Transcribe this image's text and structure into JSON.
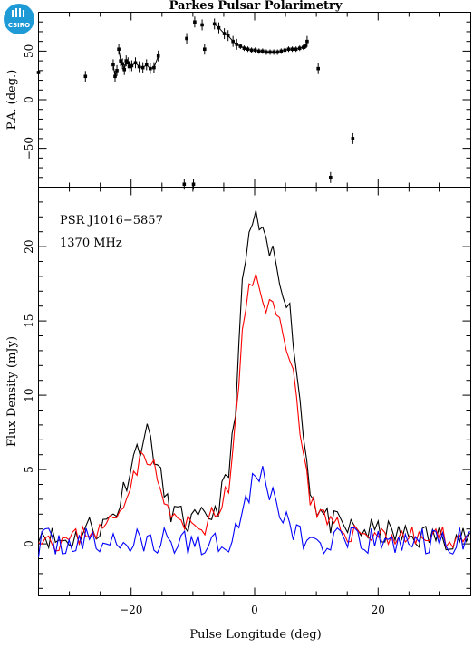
{
  "title": "Parkes Pulsar Polarimetry",
  "logo_text": "CSIRO",
  "colors": {
    "total": "#000000",
    "linear": "#ff0000",
    "circular": "#0000ff",
    "logo": "#1e9bd7"
  },
  "chart_data": [
    {
      "type": "scatter",
      "panel": "position-angle",
      "ylabel": "P.A. (deg.)",
      "xlim": [
        -35,
        35
      ],
      "ylim": [
        -90,
        90
      ],
      "yticks": [
        -50,
        0,
        50
      ],
      "ytick_labels": [
        "−50",
        "0",
        "50"
      ],
      "error_bars": true,
      "points": [
        [
          -35,
          28
        ],
        [
          -27.4,
          24
        ],
        [
          -22.9,
          36
        ],
        [
          -22.6,
          24
        ],
        [
          -22.3,
          30
        ],
        [
          -22.0,
          52
        ],
        [
          -21.7,
          40
        ],
        [
          -21.4,
          37
        ],
        [
          -21.1,
          31
        ],
        [
          -20.8,
          40
        ],
        [
          -20.5,
          38
        ],
        [
          -20.2,
          34
        ],
        [
          -19.9,
          35
        ],
        [
          -19.3,
          38
        ],
        [
          -18.7,
          34
        ],
        [
          -18.1,
          33
        ],
        [
          -17.5,
          36
        ],
        [
          -16.9,
          32
        ],
        [
          -16.3,
          33
        ],
        [
          -15.6,
          45
        ],
        [
          -11.4,
          -87
        ],
        [
          -11.0,
          63
        ],
        [
          -9.9,
          -87
        ],
        [
          -9.7,
          80
        ],
        [
          -8.5,
          77
        ],
        [
          -8.1,
          52
        ],
        [
          -6.5,
          78
        ],
        [
          -5.8,
          74
        ],
        [
          -4.9,
          68
        ],
        [
          -4.3,
          66
        ],
        [
          -3.5,
          60
        ],
        [
          -2.9,
          57
        ],
        [
          -2.3,
          55
        ],
        [
          -1.7,
          53
        ],
        [
          -1.1,
          52
        ],
        [
          -0.5,
          51
        ],
        [
          0.1,
          51
        ],
        [
          0.7,
          50
        ],
        [
          1.3,
          50
        ],
        [
          1.9,
          49
        ],
        [
          2.5,
          49
        ],
        [
          3.1,
          49
        ],
        [
          3.7,
          49
        ],
        [
          4.3,
          50
        ],
        [
          4.9,
          51
        ],
        [
          5.5,
          52
        ],
        [
          6.1,
          52
        ],
        [
          6.7,
          52
        ],
        [
          7.3,
          53
        ],
        [
          7.9,
          54
        ],
        [
          8.2,
          55
        ],
        [
          8.5,
          60
        ],
        [
          10.3,
          32
        ],
        [
          12.3,
          -80
        ],
        [
          15.9,
          -40
        ]
      ]
    },
    {
      "type": "line",
      "panel": "flux",
      "xlabel": "Pulse Longitude (deg)",
      "ylabel": "Flux Density (mJy)",
      "xlim": [
        -35,
        35
      ],
      "ylim": [
        -3.5,
        24
      ],
      "xticks": [
        -20,
        0,
        20
      ],
      "xtick_labels": [
        "−20",
        "0",
        "20"
      ],
      "yticks": [
        0,
        5,
        10,
        15,
        20
      ],
      "ytick_labels": [
        "0",
        "5",
        "10",
        "15",
        "20"
      ],
      "annotations": [
        "PSR J1016−5857",
        "1370 MHz"
      ],
      "profile_points": [
        [
          -35,
          1
        ],
        [
          -32,
          0.2
        ],
        [
          -29,
          0.4
        ],
        [
          -27,
          1.2
        ],
        [
          -25,
          1.0
        ],
        [
          -22,
          2.5
        ],
        [
          -20,
          5.5
        ],
        [
          -18,
          7.2
        ],
        [
          -17,
          7.5
        ],
        [
          -16,
          5.5
        ],
        [
          -14,
          2.5
        ],
        [
          -11,
          1.4
        ],
        [
          -8,
          1.6
        ],
        [
          -6,
          2.5
        ],
        [
          -4,
          5
        ],
        [
          -3,
          10
        ],
        [
          -2,
          17
        ],
        [
          -1,
          20.5
        ],
        [
          0,
          22
        ],
        [
          1,
          21
        ],
        [
          2,
          19.5
        ],
        [
          3,
          19.5
        ],
        [
          4,
          18
        ],
        [
          5,
          17
        ],
        [
          6,
          15
        ],
        [
          7,
          11
        ],
        [
          8,
          7
        ],
        [
          9,
          4
        ],
        [
          10,
          2.5
        ],
        [
          12,
          1.5
        ],
        [
          15,
          1
        ],
        [
          20,
          0.8
        ],
        [
          25,
          0.5
        ],
        [
          30,
          0.5
        ],
        [
          35,
          0.5
        ]
      ],
      "series": [
        {
          "key": "total",
          "base": 1.0,
          "noise": 0.9,
          "seed": 11
        },
        {
          "key": "linear",
          "base": 0.82,
          "noise": 0.75,
          "seed": 23
        },
        {
          "key": "circular",
          "base": 0.2,
          "noise": 1.0,
          "seed": 37
        }
      ]
    }
  ]
}
